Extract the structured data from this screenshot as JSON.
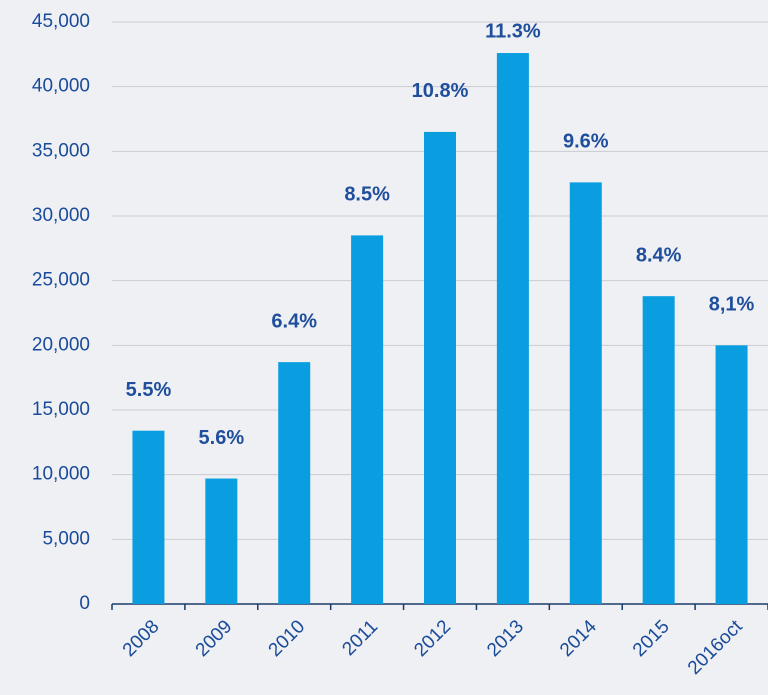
{
  "chart_data": {
    "type": "bar",
    "categories": [
      "2008",
      "2009",
      "2010",
      "2011",
      "2012",
      "2013",
      "2014",
      "2015",
      "2016oct"
    ],
    "values": [
      13400,
      9700,
      18700,
      28500,
      36500,
      42600,
      32600,
      23800,
      20000
    ],
    "labels": [
      "5.5%",
      "5.6%",
      "6.4%",
      "8.5%",
      "10.8%",
      "11.3%",
      "9.6%",
      "8.4%",
      "8,1%"
    ],
    "color": "#0a9de0",
    "ylim": [
      0,
      45000
    ],
    "yticks": [
      0,
      {
        "value": 5000,
        "label": "5,000"
      },
      {
        "value": 10000,
        "label": "10,000"
      },
      {
        "value": 15000,
        "label": "15,000"
      },
      {
        "value": 20000,
        "label": "20,000"
      },
      {
        "value": 25000,
        "label": "25,000"
      },
      {
        "value": 30000,
        "label": "30,000"
      },
      {
        "value": 35000,
        "label": "35,000"
      },
      {
        "value": 40000,
        "label": "40,000"
      },
      {
        "value": 45000,
        "label": "45,000"
      }
    ],
    "grid": true
  }
}
